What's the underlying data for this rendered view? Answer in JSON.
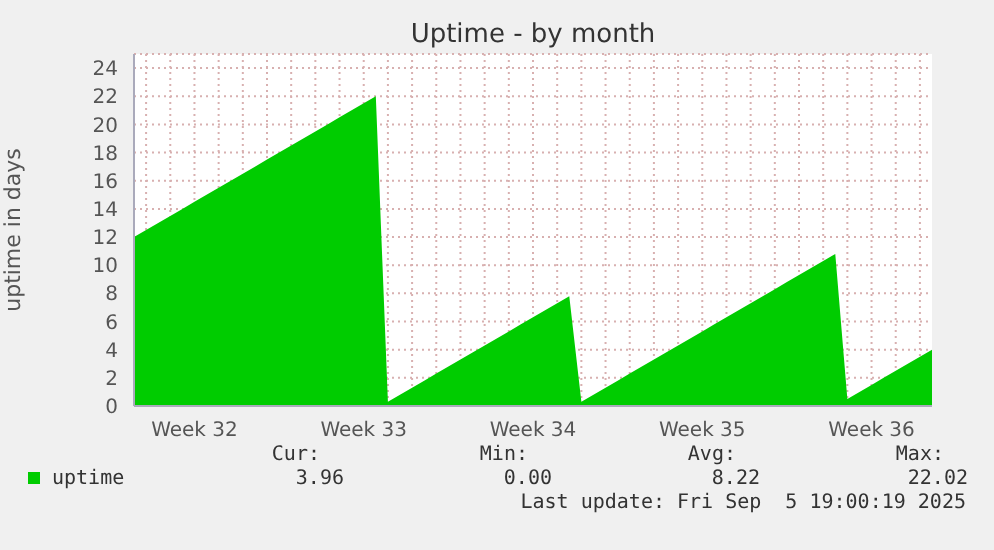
{
  "chart_data": {
    "type": "area",
    "title": "Uptime - by month",
    "ylabel": "uptime in days",
    "categories": [
      null,
      null,
      null,
      null,
      null,
      "Week 32",
      null,
      null,
      null,
      null,
      null,
      null,
      null,
      null,
      null,
      null,
      null,
      null,
      null,
      "Week 33",
      null,
      null,
      null,
      null,
      null,
      null,
      null,
      null,
      null,
      null,
      null,
      null,
      null,
      "Week 34",
      null,
      null,
      null,
      null,
      null,
      null,
      null,
      null,
      null,
      null,
      null,
      null,
      null,
      "Week 35",
      null,
      null,
      null,
      null,
      null,
      null,
      null,
      null,
      null,
      null,
      null,
      null,
      null,
      "Week 36",
      null,
      null,
      null,
      null,
      null
    ],
    "series": [
      {
        "name": "uptime",
        "color": "#00cc00",
        "values": [
          12,
          12.5,
          13,
          13.5,
          14,
          14.5,
          15,
          15.5,
          16,
          16.5,
          17,
          17.5,
          18,
          18.5,
          19,
          19.5,
          20,
          20.5,
          21,
          21.5,
          22,
          0.3,
          0.8,
          1.3,
          1.8,
          2.3,
          2.8,
          3.3,
          3.8,
          4.3,
          4.8,
          5.3,
          5.8,
          6.3,
          6.8,
          7.3,
          7.8,
          0.3,
          0.8,
          1.3,
          1.8,
          2.3,
          2.8,
          3.3,
          3.8,
          4.3,
          4.8,
          5.3,
          5.8,
          6.3,
          6.8,
          7.3,
          7.8,
          8.3,
          8.8,
          9.3,
          9.8,
          10.3,
          10.8,
          0.5,
          1,
          1.5,
          2,
          2.5,
          3,
          3.5,
          4
        ]
      }
    ],
    "ylim": [
      0,
      25
    ],
    "yticks": [
      0,
      2,
      4,
      6,
      8,
      10,
      12,
      14,
      16,
      18,
      20,
      22,
      24
    ],
    "grid": true,
    "legend": "bottom",
    "annotations": [
      "Cur:",
      "Min:",
      "Avg:",
      "Max:",
      "3.96",
      "0.00",
      "8.22",
      "22.02",
      "Last update: Fri Sep  5 19:00:19 2025"
    ]
  }
}
